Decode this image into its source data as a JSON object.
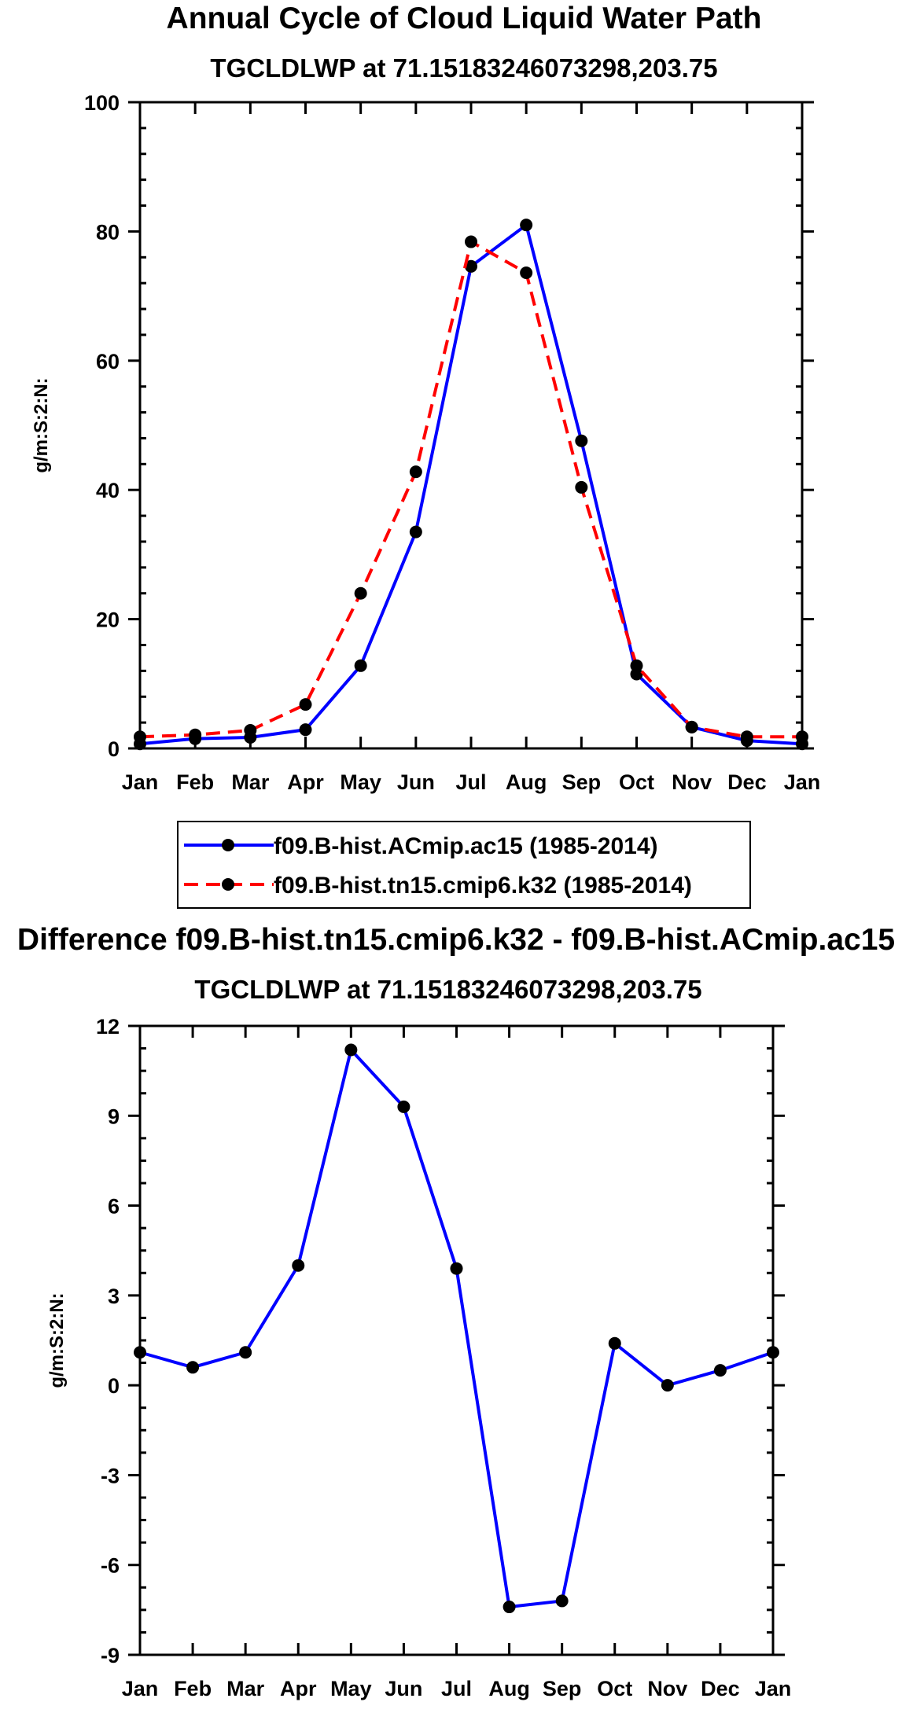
{
  "colors": {
    "control": "#0000ff",
    "test": "#ff0000",
    "marker": "#000000"
  },
  "chart_data": [
    {
      "type": "line",
      "title": "Annual Cycle of Cloud Liquid Water Path",
      "subtitle": "TGCLDLWP at 71.15183246073298,203.75",
      "ylabel": "g/m:S:2:N:",
      "xlabel": "",
      "categories": [
        "Jan",
        "Feb",
        "Mar",
        "Apr",
        "May",
        "Jun",
        "Jul",
        "Aug",
        "Sep",
        "Oct",
        "Nov",
        "Dec",
        "Jan"
      ],
      "ylim": [
        0,
        100
      ],
      "yticks": [
        0,
        20,
        40,
        60,
        80,
        100
      ],
      "ytick_labels": [
        "0",
        "20",
        "40",
        "60",
        "80",
        "100"
      ],
      "series": [
        {
          "name": "f09.B-hist.ACmip.ac15 (1985-2014)",
          "style": "solid",
          "color": "#0000ff",
          "values": [
            0.7,
            1.5,
            1.7,
            2.9,
            12.8,
            33.5,
            74.6,
            81.0,
            47.6,
            11.5,
            3.3,
            1.2,
            0.7
          ]
        },
        {
          "name": "f09.B-hist.tn15.cmip6.k32 (1985-2014)",
          "style": "dashed",
          "color": "#ff0000",
          "values": [
            1.8,
            2.1,
            2.8,
            6.8,
            24.0,
            42.8,
            78.4,
            73.6,
            40.4,
            12.8,
            3.3,
            1.8,
            1.8
          ]
        }
      ],
      "legend": {
        "position": "bottom-center",
        "entries": [
          "f09.B-hist.ACmip.ac15 (1985-2014)",
          "f09.B-hist.tn15.cmip6.k32 (1985-2014)"
        ]
      },
      "grid": false
    },
    {
      "type": "line",
      "title": "Difference f09.B-hist.tn15.cmip6.k32 - f09.B-hist.ACmip.ac15",
      "subtitle": "TGCLDLWP at 71.15183246073298,203.75",
      "ylabel": "g/m:S:2:N:",
      "xlabel": "",
      "categories": [
        "Jan",
        "Feb",
        "Mar",
        "Apr",
        "May",
        "Jun",
        "Jul",
        "Aug",
        "Sep",
        "Oct",
        "Nov",
        "Dec",
        "Jan"
      ],
      "ylim": [
        -9,
        12
      ],
      "yticks": [
        -9,
        -6,
        -3,
        0,
        3,
        6,
        9,
        12
      ],
      "ytick_labels": [
        "-9",
        "-6",
        "-3",
        "0",
        "3",
        "6",
        "9",
        "12"
      ],
      "series": [
        {
          "name": "difference",
          "style": "solid",
          "color": "#0000ff",
          "values": [
            1.1,
            0.6,
            1.1,
            4.0,
            11.2,
            9.3,
            3.9,
            -7.4,
            -7.2,
            1.4,
            0.0,
            0.5,
            1.1
          ]
        }
      ],
      "grid": false
    }
  ]
}
